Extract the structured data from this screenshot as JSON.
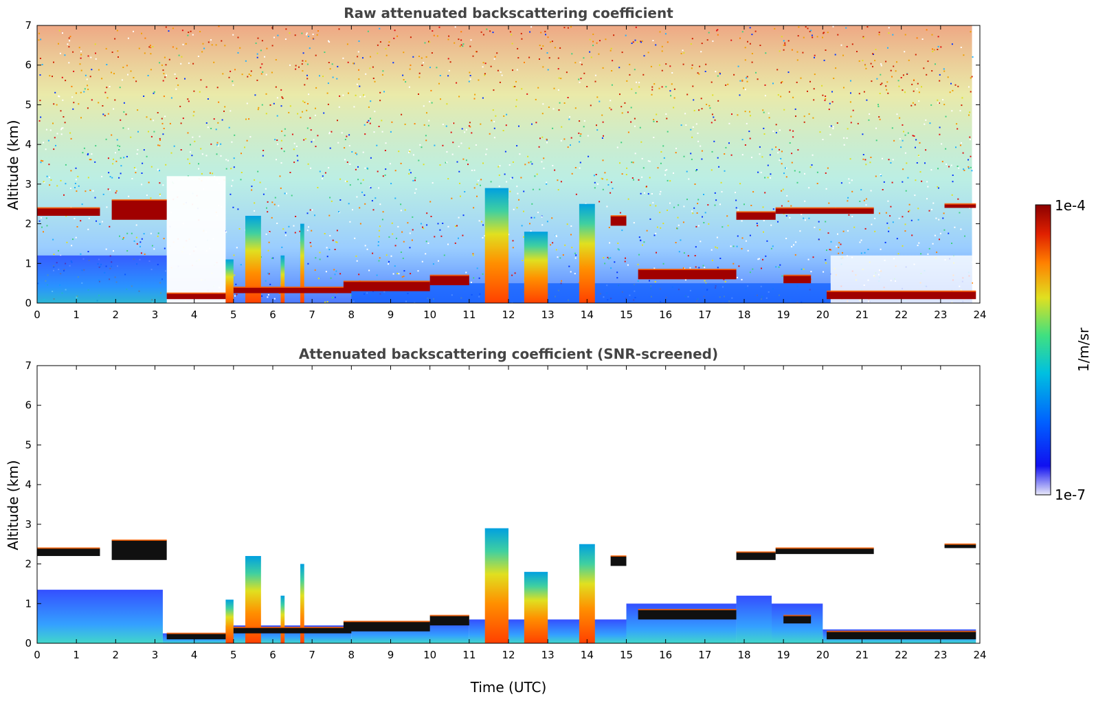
{
  "chart_data": [
    {
      "type": "heatmap",
      "title": "Raw attenuated backscattering coefficient",
      "xlabel": "",
      "ylabel": "Altitude (km)",
      "xlim": [
        0,
        24
      ],
      "ylim": [
        0,
        7
      ],
      "xticks": [
        "0",
        "1",
        "2",
        "3",
        "4",
        "5",
        "6",
        "7",
        "8",
        "9",
        "10",
        "11",
        "12",
        "13",
        "14",
        "15",
        "16",
        "17",
        "18",
        "19",
        "20",
        "21",
        "22",
        "23",
        "24"
      ],
      "yticks": [
        "0",
        "1",
        "2",
        "3",
        "4",
        "5",
        "6",
        "7"
      ],
      "screened": false,
      "cloud_layers": [
        {
          "start": 0.0,
          "end": 1.6,
          "base_km": 2.2,
          "top_km": 2.4
        },
        {
          "start": 1.9,
          "end": 3.3,
          "base_km": 2.1,
          "top_km": 2.6
        },
        {
          "start": 3.3,
          "end": 4.8,
          "base_km": 0.1,
          "top_km": 0.25
        },
        {
          "start": 5.0,
          "end": 8.0,
          "base_km": 0.25,
          "top_km": 0.4
        },
        {
          "start": 7.8,
          "end": 10.0,
          "base_km": 0.3,
          "top_km": 0.55
        },
        {
          "start": 10.0,
          "end": 11.0,
          "base_km": 0.45,
          "top_km": 0.7
        },
        {
          "start": 14.6,
          "end": 15.0,
          "base_km": 1.95,
          "top_km": 2.2
        },
        {
          "start": 15.3,
          "end": 17.8,
          "base_km": 0.6,
          "top_km": 0.85
        },
        {
          "start": 17.8,
          "end": 18.8,
          "base_km": 2.1,
          "top_km": 2.3
        },
        {
          "start": 18.8,
          "end": 21.3,
          "base_km": 2.25,
          "top_km": 2.4
        },
        {
          "start": 19.0,
          "end": 19.7,
          "base_km": 0.5,
          "top_km": 0.7
        },
        {
          "start": 20.1,
          "end": 23.9,
          "base_km": 0.1,
          "top_km": 0.3
        },
        {
          "start": 23.1,
          "end": 23.9,
          "base_km": 2.4,
          "top_km": 2.5
        }
      ],
      "convective_plumes": [
        {
          "start": 4.8,
          "end": 5.0,
          "top_km": 1.1
        },
        {
          "start": 5.3,
          "end": 5.7,
          "top_km": 2.2
        },
        {
          "start": 6.2,
          "end": 6.3,
          "top_km": 1.2
        },
        {
          "start": 6.7,
          "end": 6.8,
          "top_km": 2.0
        },
        {
          "start": 11.4,
          "end": 12.0,
          "top_km": 2.9
        },
        {
          "start": 12.4,
          "end": 13.0,
          "top_km": 1.8
        },
        {
          "start": 13.8,
          "end": 14.2,
          "top_km": 2.5
        }
      ]
    },
    {
      "type": "heatmap",
      "title": "Attenuated backscattering coefficient (SNR-screened)",
      "xlabel": "Time (UTC)",
      "ylabel": "Altitude (km)",
      "xlim": [
        0,
        24
      ],
      "ylim": [
        0,
        7
      ],
      "xticks": [
        "0",
        "1",
        "2",
        "3",
        "4",
        "5",
        "6",
        "7",
        "8",
        "9",
        "10",
        "11",
        "12",
        "13",
        "14",
        "15",
        "16",
        "17",
        "18",
        "19",
        "20",
        "21",
        "22",
        "23",
        "24"
      ],
      "yticks": [
        "0",
        "1",
        "2",
        "3",
        "4",
        "5",
        "6",
        "7"
      ],
      "screened": true,
      "cloud_layers": [
        {
          "start": 0.0,
          "end": 1.6,
          "base_km": 2.2,
          "top_km": 2.4
        },
        {
          "start": 1.9,
          "end": 3.3,
          "base_km": 2.1,
          "top_km": 2.6
        },
        {
          "start": 3.3,
          "end": 4.8,
          "base_km": 0.1,
          "top_km": 0.25
        },
        {
          "start": 5.0,
          "end": 8.0,
          "base_km": 0.25,
          "top_km": 0.4
        },
        {
          "start": 7.8,
          "end": 10.0,
          "base_km": 0.3,
          "top_km": 0.55
        },
        {
          "start": 10.0,
          "end": 11.0,
          "base_km": 0.45,
          "top_km": 0.7
        },
        {
          "start": 14.6,
          "end": 15.0,
          "base_km": 1.95,
          "top_km": 2.2
        },
        {
          "start": 15.3,
          "end": 17.8,
          "base_km": 0.6,
          "top_km": 0.85
        },
        {
          "start": 17.8,
          "end": 18.8,
          "base_km": 2.1,
          "top_km": 2.3
        },
        {
          "start": 18.8,
          "end": 21.3,
          "base_km": 2.25,
          "top_km": 2.4
        },
        {
          "start": 19.0,
          "end": 19.7,
          "base_km": 0.5,
          "top_km": 0.7
        },
        {
          "start": 20.1,
          "end": 23.9,
          "base_km": 0.1,
          "top_km": 0.3
        },
        {
          "start": 23.1,
          "end": 23.9,
          "base_km": 2.4,
          "top_km": 2.5
        }
      ],
      "convective_plumes": [
        {
          "start": 4.8,
          "end": 5.0,
          "top_km": 1.1
        },
        {
          "start": 5.3,
          "end": 5.7,
          "top_km": 2.2
        },
        {
          "start": 6.2,
          "end": 6.3,
          "top_km": 1.2
        },
        {
          "start": 6.7,
          "end": 6.8,
          "top_km": 2.0
        },
        {
          "start": 11.4,
          "end": 12.0,
          "top_km": 2.9
        },
        {
          "start": 12.4,
          "end": 13.0,
          "top_km": 1.8
        },
        {
          "start": 13.8,
          "end": 14.2,
          "top_km": 2.5
        }
      ]
    }
  ],
  "colorbar": {
    "label": "1/m/sr",
    "max_label": "1e-4",
    "min_label": "1e-7",
    "scale": "log",
    "range": [
      1e-07,
      0.0001
    ],
    "colors": [
      "#e8e8f8",
      "#1010f0",
      "#0060ff",
      "#00c0e0",
      "#40e080",
      "#e0e020",
      "#ff8000",
      "#e02000",
      "#8b0000"
    ]
  }
}
